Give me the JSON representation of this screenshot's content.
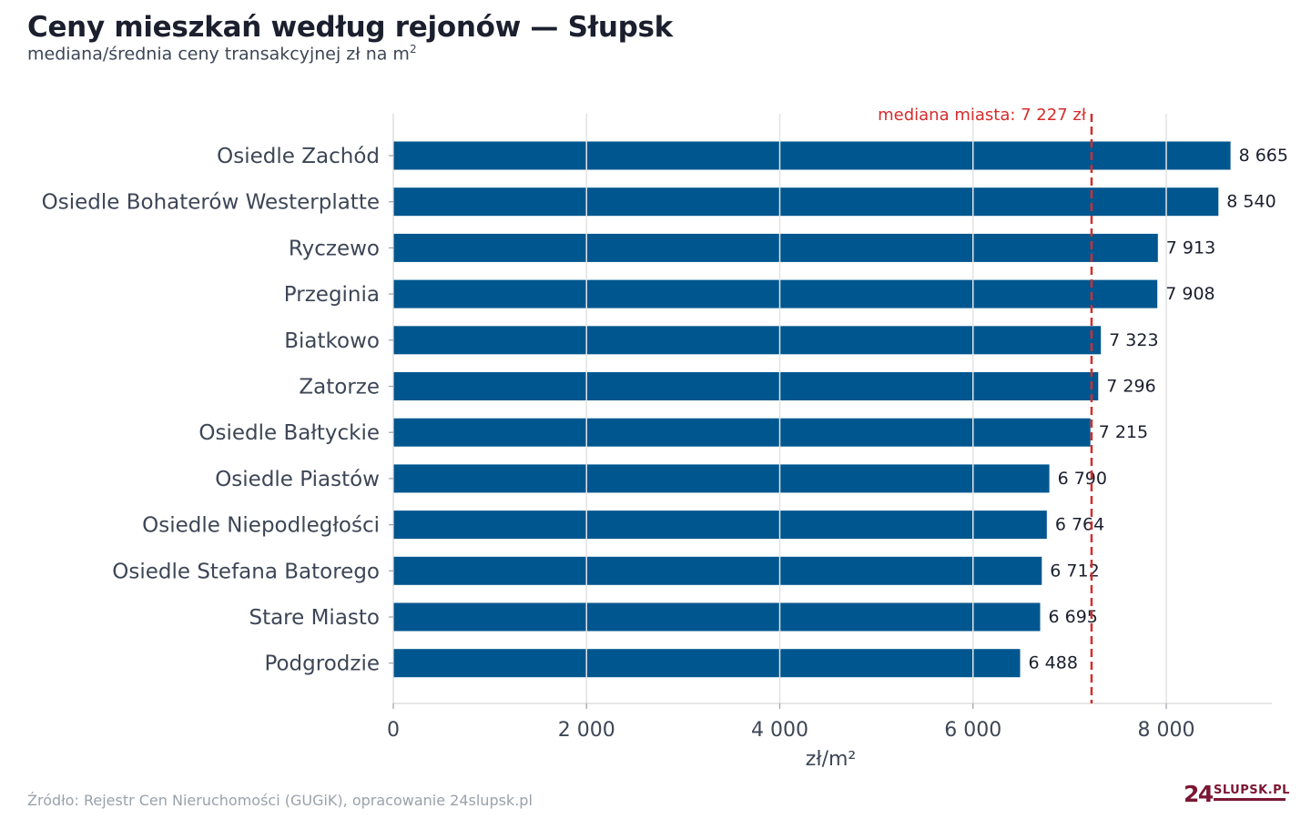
{
  "chart_data": {
    "type": "bar",
    "orientation": "horizontal",
    "title": "Ceny mieszkań według rejonów — Słupsk",
    "subtitle": "mediana/średnia ceny transakcyjnej zł na m",
    "subtitle_sup": "2",
    "xlabel": "zł/m²",
    "ylabel": "",
    "xlim": [
      0,
      9100
    ],
    "xticks": [
      0,
      2000,
      4000,
      6000,
      8000
    ],
    "xtick_labels": [
      "0",
      "2 000",
      "4 000",
      "6 000",
      "8 000"
    ],
    "grid": true,
    "bar_color": "#00568f",
    "reference_line": {
      "value": 7227,
      "label": "mediana miasta: 7 227 zł",
      "color": "#d62c2c",
      "style": "dashed"
    },
    "categories": [
      "Osiedle Zachód",
      "Osiedle Bohaterów Westerplatte",
      "Ryczewo",
      "Przeginia",
      "Biatkowo",
      "Zatorze",
      "Osiedle Bałtyckie",
      "Osiedle Piastów",
      "Osiedle Niepodległości",
      "Osiedle Stefana Batorego",
      "Stare Miasto",
      "Podgrodzie"
    ],
    "values": [
      8665,
      8540,
      7913,
      7908,
      7323,
      7296,
      7215,
      6790,
      6764,
      6712,
      6695,
      6488
    ],
    "value_labels": [
      "8 665",
      "8 540",
      "7 913",
      "7 908",
      "7 323",
      "7 296",
      "7 215",
      "6 790",
      "6 764",
      "6 712",
      "6 695",
      "6 488"
    ]
  },
  "footer": {
    "source": "Źródło: Rejestr Cen Nieruchomości (GUGiK), opracowanie 24slupsk.pl"
  },
  "logo": {
    "number": "24",
    "text": "SLUPSK.PL"
  }
}
